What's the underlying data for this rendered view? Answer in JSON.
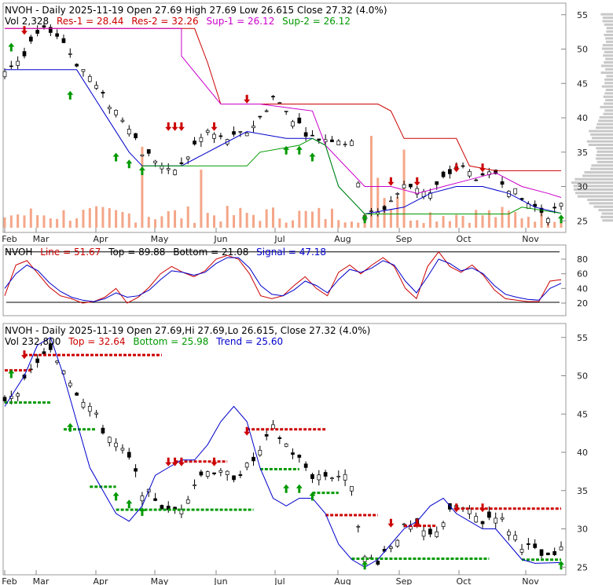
{
  "colors": {
    "res1": "#cc0000",
    "res2": "#cc0000",
    "sup1": "#cc00cc",
    "sup2": "#009900",
    "line": "#cc0000",
    "signal": "#0000cc",
    "top": "#cc0000",
    "bottom": "#009900",
    "trend": "#0000cc",
    "volume": "#f4a688",
    "profile": "#c8c8c8",
    "arrow_up": "#009900",
    "arrow_down": "#cc0000"
  },
  "panel1": {
    "title_text": "NVOH - Daily 2025-11-19 Open 27.69  High 27.69  Low 26.615  Close 27.32 (4.0%)",
    "vol_text": "Vol 2,328",
    "res1_text": "Res-1 = 28.44",
    "res2_text": "Res-2 = 32.26",
    "sup1_text": "Sup-1 = 26.12",
    "sup2_text": "Sup-2 = 26.12"
  },
  "panel2": {
    "label_text": "NVOH",
    "line_text": "Line = 51.67",
    "top_text": "Top = 89.88",
    "bottom_text": "Bottom = 21.08",
    "signal_text": "Signal = 47.18"
  },
  "panel3": {
    "title_text": "NVOH - Daily 2025-11-19 Open 27.69,Hi 27.69,Lo 26.615, Close 27.32 (4.0%)",
    "vol_text": "Vol 232,800",
    "top_text": "Top = 32.64",
    "bottom_text": "Bottom = 25.98",
    "trend_text": "Trend = 25.60"
  },
  "chart_data": [
    {
      "type": "candlestick",
      "title": "NVOH - Daily 2025-11-19",
      "x_months": [
        "Feb",
        "Mar",
        "Apr",
        "May",
        "Jun",
        "Jul",
        "Aug",
        "Sep",
        "Oct",
        "Nov"
      ],
      "y_ticks": [
        25,
        30,
        35,
        40,
        45,
        50,
        55
      ],
      "ylim": [
        24,
        56
      ],
      "close_path": [
        [
          0,
          47
        ],
        [
          3,
          49
        ],
        [
          5,
          52
        ],
        [
          7,
          53
        ],
        [
          9,
          51
        ],
        [
          11,
          48
        ],
        [
          13,
          46
        ],
        [
          15,
          43
        ],
        [
          17,
          41
        ],
        [
          19,
          39
        ],
        [
          21,
          35
        ],
        [
          23,
          34
        ],
        [
          25,
          32
        ],
        [
          27,
          33
        ],
        [
          29,
          36
        ],
        [
          31,
          38
        ],
        [
          33,
          37
        ],
        [
          35,
          37
        ],
        [
          37,
          38
        ],
        [
          39,
          40
        ],
        [
          41,
          43
        ],
        [
          43,
          41
        ],
        [
          45,
          39
        ],
        [
          47,
          37
        ],
        [
          49,
          37
        ],
        [
          51,
          37
        ],
        [
          53,
          36
        ],
        [
          55,
          26
        ],
        [
          57,
          26
        ],
        [
          59,
          28
        ],
        [
          61,
          30
        ],
        [
          63,
          30
        ],
        [
          65,
          29
        ],
        [
          67,
          31
        ],
        [
          69,
          33
        ],
        [
          71,
          32
        ],
        [
          73,
          31
        ],
        [
          75,
          32
        ],
        [
          77,
          30
        ],
        [
          79,
          28
        ],
        [
          81,
          27
        ],
        [
          83,
          26
        ],
        [
          85,
          27
        ]
      ],
      "res1_path": [
        [
          0,
          53
        ],
        [
          27,
          53
        ],
        [
          27,
          49
        ],
        [
          33,
          42
        ],
        [
          39,
          42
        ],
        [
          47,
          41
        ],
        [
          49,
          36
        ],
        [
          55,
          30
        ],
        [
          59,
          30
        ],
        [
          63,
          29
        ],
        [
          67,
          30
        ],
        [
          71,
          31
        ],
        [
          75,
          32
        ],
        [
          79,
          30
        ],
        [
          83,
          29
        ],
        [
          85,
          28.4
        ]
      ],
      "res2_path": [
        [
          0,
          53
        ],
        [
          29,
          53
        ],
        [
          31,
          48
        ],
        [
          33,
          42
        ],
        [
          57,
          42
        ],
        [
          59,
          41
        ],
        [
          61,
          37
        ],
        [
          69,
          37
        ],
        [
          71,
          33
        ],
        [
          75,
          32.3
        ],
        [
          85,
          32.3
        ]
      ],
      "sup1_path": [
        [
          0,
          47
        ],
        [
          3,
          47
        ],
        [
          11,
          47
        ],
        [
          15,
          41
        ],
        [
          19,
          35
        ],
        [
          21,
          33
        ],
        [
          27,
          33
        ],
        [
          29,
          34
        ],
        [
          33,
          36
        ],
        [
          37,
          38
        ],
        [
          43,
          37
        ],
        [
          47,
          37
        ],
        [
          49,
          36
        ],
        [
          51,
          30
        ],
        [
          55,
          26
        ],
        [
          61,
          27
        ],
        [
          65,
          29
        ],
        [
          69,
          30
        ],
        [
          73,
          30
        ],
        [
          77,
          29
        ],
        [
          81,
          27
        ],
        [
          85,
          26.1
        ]
      ],
      "sup2_path": [
        [
          21,
          33
        ],
        [
          37,
          33
        ],
        [
          39,
          35
        ],
        [
          45,
          36
        ],
        [
          47,
          37
        ],
        [
          49,
          36
        ],
        [
          51,
          30
        ],
        [
          55,
          26
        ],
        [
          77,
          26
        ],
        [
          79,
          27
        ],
        [
          85,
          26.1
        ]
      ],
      "arrows_up": [
        [
          1,
          50
        ],
        [
          10,
          43
        ],
        [
          17,
          34
        ],
        [
          19,
          33
        ],
        [
          21,
          32
        ],
        [
          43,
          35
        ],
        [
          45,
          35
        ],
        [
          47,
          34
        ],
        [
          55,
          25
        ],
        [
          85,
          25
        ]
      ],
      "arrows_down": [
        [
          3,
          53
        ],
        [
          25,
          39
        ],
        [
          26,
          39
        ],
        [
          27,
          39
        ],
        [
          32,
          39
        ],
        [
          37,
          43
        ],
        [
          59,
          31
        ],
        [
          63,
          31
        ],
        [
          69,
          33
        ],
        [
          73,
          33
        ]
      ]
    },
    {
      "type": "line",
      "title": "NVOH",
      "y_ticks": [
        20,
        40,
        60,
        80
      ],
      "ylim": [
        5,
        95
      ],
      "series": [
        {
          "name": "Line",
          "values": [
            30,
            72,
            78,
            60,
            42,
            30,
            26,
            20,
            22,
            28,
            40,
            20,
            28,
            42,
            60,
            70,
            62,
            56,
            64,
            80,
            85,
            80,
            60,
            30,
            26,
            30,
            44,
            56,
            40,
            30,
            62,
            72,
            60,
            72,
            82,
            70,
            40,
            26,
            70,
            90,
            70,
            62,
            72,
            58,
            38,
            26,
            24,
            22,
            22,
            50,
            52
          ]
        },
        {
          "name": "Signal",
          "values": [
            40,
            60,
            72,
            64,
            48,
            36,
            28,
            24,
            22,
            26,
            34,
            28,
            30,
            38,
            52,
            64,
            62,
            58,
            62,
            74,
            82,
            82,
            68,
            44,
            32,
            30,
            38,
            50,
            44,
            34,
            52,
            66,
            62,
            68,
            78,
            72,
            50,
            34,
            56,
            80,
            74,
            64,
            68,
            60,
            44,
            32,
            28,
            25,
            24,
            40,
            47
          ]
        }
      ],
      "top_line": 89.88,
      "bottom_line": 21.08
    },
    {
      "type": "candlestick",
      "title": "NVOH - Daily 2025-11-19",
      "x_months": [
        "Feb",
        "Mar",
        "Apr",
        "May",
        "Jun",
        "Jul",
        "Aug",
        "Sep",
        "Oct",
        "Nov"
      ],
      "y_ticks": [
        25,
        30,
        35,
        40,
        45,
        50,
        55
      ],
      "ylim": [
        24,
        56
      ],
      "trend_path": [
        [
          0,
          46
        ],
        [
          3,
          50
        ],
        [
          5,
          54
        ],
        [
          7,
          55
        ],
        [
          9,
          50
        ],
        [
          11,
          44
        ],
        [
          13,
          38
        ],
        [
          15,
          35
        ],
        [
          17,
          32
        ],
        [
          19,
          31
        ],
        [
          21,
          33
        ],
        [
          23,
          37
        ],
        [
          25,
          38
        ],
        [
          27,
          39
        ],
        [
          29,
          39
        ],
        [
          31,
          41
        ],
        [
          33,
          44
        ],
        [
          35,
          46
        ],
        [
          37,
          44
        ],
        [
          39,
          38
        ],
        [
          41,
          34
        ],
        [
          43,
          33
        ],
        [
          45,
          34
        ],
        [
          47,
          34
        ],
        [
          49,
          32
        ],
        [
          51,
          28
        ],
        [
          53,
          26
        ],
        [
          55,
          25
        ],
        [
          57,
          26
        ],
        [
          59,
          28
        ],
        [
          61,
          30
        ],
        [
          63,
          31
        ],
        [
          65,
          33
        ],
        [
          67,
          34
        ],
        [
          69,
          32
        ],
        [
          71,
          31
        ],
        [
          73,
          30
        ],
        [
          75,
          30
        ],
        [
          77,
          28
        ],
        [
          79,
          26
        ],
        [
          81,
          25.5
        ],
        [
          85,
          25.6
        ]
      ]
    }
  ]
}
